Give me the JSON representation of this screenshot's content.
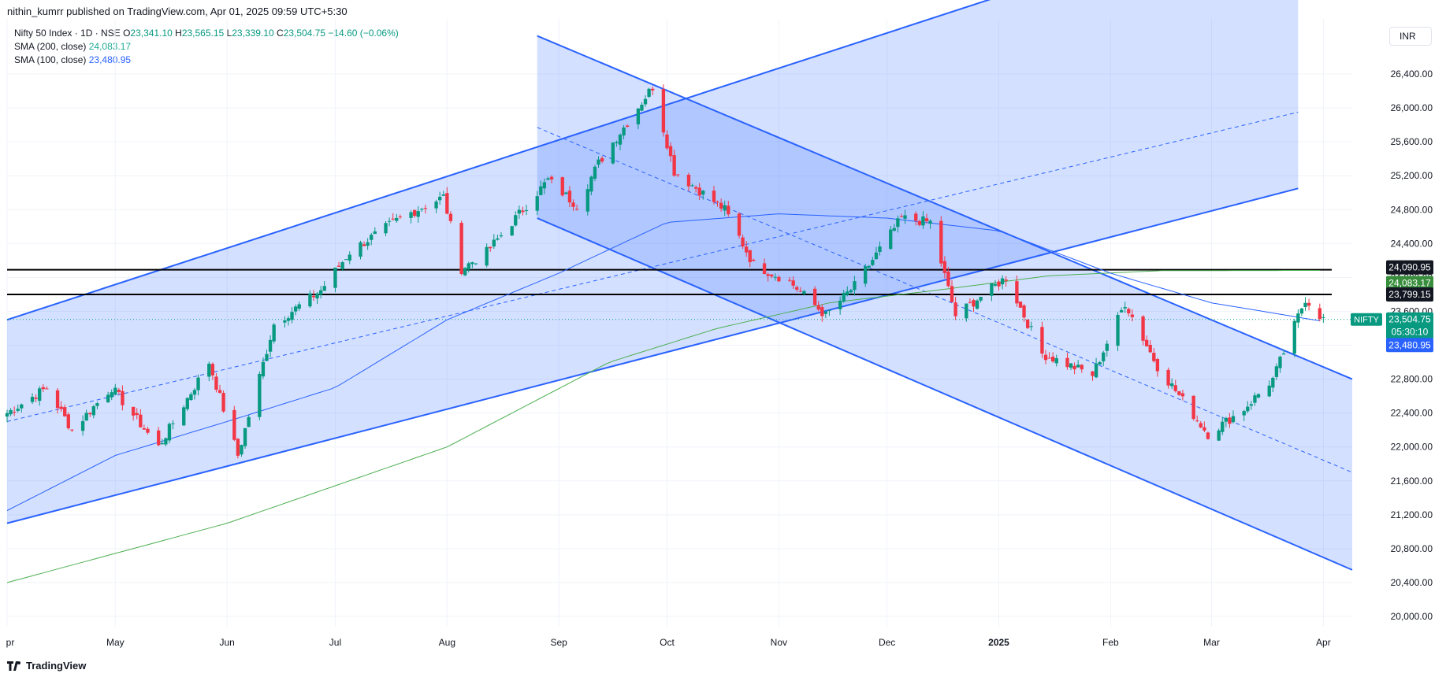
{
  "header": {
    "published": "nithin_kumrr published on TradingView.com, Apr 01, 2025 09:59 UTC+5:30"
  },
  "legend": {
    "symbol": "Nifty 50 Index · 1D · NSE",
    "o_label": "O",
    "o": "23,341.10",
    "h_label": "H",
    "h": "23,565.15",
    "l_label": "L",
    "l": "23,339.10",
    "c_label": "C",
    "c": "23,504.75",
    "change": "−14.60 (−0.06%)",
    "sma200_label": "SMA (200, close)",
    "sma200": "24,083.17",
    "sma100_label": "SMA (100, close)",
    "sma100": "23,480.95"
  },
  "currency": "INR",
  "footer": {
    "brand": "TradingView"
  },
  "colors": {
    "up": "#089981",
    "down": "#f23645",
    "channel": "#2962ff",
    "sma200": "#4caf50",
    "sma100": "#2962ff",
    "fill": "#2962ff"
  },
  "badges": {
    "r1": "24,090.95",
    "sma200": "24,083.17",
    "r2": "23,799.15",
    "symbol": "NIFTY",
    "price": "23,504.75",
    "countdown": "05:30:10",
    "sma100": "23,480.95"
  },
  "chart_data": {
    "type": "candlestick",
    "title": "",
    "y_ticks": [
      "26,400.00",
      "26,000.00",
      "25,600.00",
      "25,200.00",
      "24,800.00",
      "24,400.00",
      "24,000.00",
      "23,600.00",
      "23,200.00",
      "22,800.00",
      "22,400.00",
      "22,000.00",
      "21,600.00",
      "21,200.00",
      "20,800.00",
      "20,400.00",
      "20,000.00"
    ],
    "y_tick_values": [
      26400,
      26000,
      25600,
      25200,
      24800,
      24400,
      24000,
      23600,
      23200,
      22800,
      22400,
      22000,
      21600,
      21200,
      20800,
      20400,
      20000
    ],
    "ylim": [
      19880,
      27050
    ],
    "x_labels": [
      "pr",
      "May",
      "Jun",
      "Jul",
      "Aug",
      "Sep",
      "Oct",
      "Nov",
      "Dec",
      "2025",
      "Feb",
      "Mar",
      "Apr"
    ],
    "x_label_dates": [
      "2024-04-01",
      "2024-05-01",
      "2024-06-01",
      "2024-07-01",
      "2024-08-01",
      "2024-09-01",
      "2024-10-01",
      "2024-11-01",
      "2024-12-01",
      "2025-01-01",
      "2025-02-01",
      "2025-03-01",
      "2025-04-01"
    ],
    "xlim": [
      "2024-04-01",
      "2025-04-09"
    ],
    "horizontal_levels": [
      24090.95,
      23799.15
    ],
    "last_price": 23504.75,
    "grid": true,
    "series_keypoints": [
      [
        "2024-04-01",
        22400
      ],
      [
        "2024-04-12",
        22700
      ],
      [
        "2024-04-19",
        22200
      ],
      [
        "2024-04-30",
        22700
      ],
      [
        "2024-05-13",
        22000
      ],
      [
        "2024-05-27",
        23000
      ],
      [
        "2024-06-04",
        21900
      ],
      [
        "2024-06-14",
        23450
      ],
      [
        "2024-06-27",
        23850
      ],
      [
        "2024-07-05",
        24300
      ],
      [
        "2024-07-19",
        24700
      ],
      [
        "2024-07-31",
        24950
      ],
      [
        "2024-08-05",
        24100
      ],
      [
        "2024-08-12",
        24300
      ],
      [
        "2024-08-29",
        25150
      ],
      [
        "2024-09-06",
        24850
      ],
      [
        "2024-09-12",
        25350
      ],
      [
        "2024-09-27",
        26250
      ],
      [
        "2024-10-03",
        25250
      ],
      [
        "2024-10-17",
        24800
      ],
      [
        "2024-10-25",
        24150
      ],
      [
        "2024-11-04",
        23950
      ],
      [
        "2024-11-14",
        23550
      ],
      [
        "2024-11-22",
        23900
      ],
      [
        "2024-12-05",
        24700
      ],
      [
        "2024-12-13",
        24650
      ],
      [
        "2024-12-20",
        23550
      ],
      [
        "2025-01-03",
        24000
      ],
      [
        "2025-01-13",
        23100
      ],
      [
        "2025-01-27",
        22850
      ],
      [
        "2025-02-05",
        23700
      ],
      [
        "2025-02-14",
        22950
      ],
      [
        "2025-02-28",
        22150
      ],
      [
        "2025-03-10",
        22450
      ],
      [
        "2025-03-18",
        22800
      ],
      [
        "2025-03-27",
        23750
      ],
      [
        "2025-04-01",
        23505
      ]
    ],
    "sma200_keypoints": [
      [
        "2024-04-01",
        20400
      ],
      [
        "2024-06-01",
        21100
      ],
      [
        "2024-08-01",
        22000
      ],
      [
        "2024-09-15",
        23000
      ],
      [
        "2024-10-15",
        23400
      ],
      [
        "2024-11-15",
        23700
      ],
      [
        "2024-12-15",
        23850
      ],
      [
        "2025-01-15",
        24020
      ],
      [
        "2025-02-15",
        24080
      ],
      [
        "2025-04-01",
        24083
      ]
    ],
    "sma100_keypoints": [
      [
        "2024-04-01",
        21250
      ],
      [
        "2024-05-01",
        21900
      ],
      [
        "2024-06-01",
        22300
      ],
      [
        "2024-07-01",
        22700
      ],
      [
        "2024-08-01",
        23500
      ],
      [
        "2024-09-01",
        24050
      ],
      [
        "2024-10-01",
        24650
      ],
      [
        "2024-11-01",
        24750
      ],
      [
        "2024-12-01",
        24700
      ],
      [
        "2025-01-01",
        24550
      ],
      [
        "2025-02-01",
        24050
      ],
      [
        "2025-03-01",
        23700
      ],
      [
        "2025-04-01",
        23481
      ]
    ],
    "channels": [
      {
        "name": "",
        "upper": [
          [
            "2024-04-01",
            23500
          ],
          [
            "2024-12-31",
            27300
          ]
        ],
        "mid": [
          [
            "2024-04-01",
            22300
          ],
          [
            "2025-03-25",
            25950
          ]
        ],
        "lower": [
          [
            "2024-04-01",
            21100
          ],
          [
            "2025-03-25",
            25050
          ]
        ],
        "fill_end": "2025-03-25"
      },
      {
        "name": "",
        "upper": [
          [
            "2024-08-26",
            26850
          ],
          [
            "2025-04-09",
            22800
          ]
        ],
        "mid": [
          [
            "2024-08-26",
            25770
          ],
          [
            "2025-04-09",
            21700
          ]
        ],
        "lower": [
          [
            "2024-08-26",
            24700
          ],
          [
            "2025-04-09",
            20550
          ]
        ],
        "fill_end": "2025-04-09"
      }
    ]
  }
}
